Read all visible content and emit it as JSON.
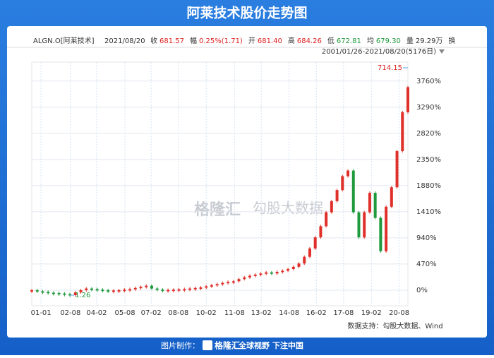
{
  "chart_data": {
    "type": "candlestick",
    "title": "阿莱技术股价走势图",
    "symbol": "ALGN.O[阿莱技术]",
    "date": "2021/08/20",
    "info": [
      {
        "label": "收",
        "value": "681.57"
      },
      {
        "label": "幅",
        "value": "0.25%(1.71)"
      },
      {
        "label": "开",
        "value": "681.40"
      },
      {
        "label": "高",
        "value": "684.26"
      },
      {
        "label": "低",
        "value": "672.81"
      },
      {
        "label": "均",
        "value": "679.30"
      },
      {
        "label": "量",
        "value": "29.29万"
      }
    ],
    "extra": "换",
    "range_label": "2001/01/26-2021/08/20(5176日)",
    "max_label": "714.15",
    "min_label": "1.26",
    "watermarks": [
      "格隆汇",
      "勾股大数据"
    ],
    "source": "数据支持：勾股大数据、Wind",
    "footer": {
      "made_by": "图片制作：",
      "brand": "格隆汇",
      "slogan": "全球视野 下注中国"
    },
    "up_color": "#e0302a",
    "down_color": "#1f9a3c",
    "values": [
      0,
      -20,
      -30,
      -45,
      -50,
      -60,
      -70,
      -90,
      -40,
      0,
      30,
      20,
      10,
      0,
      -10,
      -5,
      0,
      10,
      20,
      40,
      60,
      80,
      30,
      10,
      0,
      5,
      10,
      15,
      20,
      30,
      40,
      50,
      70,
      90,
      110,
      130,
      150,
      160,
      200,
      230,
      260,
      280,
      300,
      320,
      300,
      330,
      350,
      380,
      420,
      480,
      600,
      750,
      950,
      1150,
      1400,
      1600,
      1800,
      2050,
      2150,
      1400,
      950,
      1400,
      1750,
      1300,
      700,
      1500,
      1850,
      2500,
      3200,
      3650
    ],
    "xlim": [
      0,
      69
    ],
    "xticks": [
      {
        "value": 1.7,
        "label": "01-01"
      },
      {
        "value": 7.1,
        "label": "02-08"
      },
      {
        "value": 11.9,
        "label": "04-02"
      },
      {
        "value": 17.1,
        "label": "05-08"
      },
      {
        "value": 21.9,
        "label": "07-02"
      },
      {
        "value": 26.9,
        "label": "08-08"
      },
      {
        "value": 32,
        "label": "10-02"
      },
      {
        "value": 37.2,
        "label": "11-08"
      },
      {
        "value": 42.1,
        "label": "13-02"
      },
      {
        "value": 47.2,
        "label": "14-08"
      },
      {
        "value": 52.2,
        "label": "16-02"
      },
      {
        "value": 57.2,
        "label": "17-08"
      },
      {
        "value": 62.3,
        "label": "19-02"
      },
      {
        "value": 67.4,
        "label": "20-08"
      }
    ],
    "ylim": [
      -280,
      4100
    ],
    "yticks": [
      {
        "value": 0,
        "label": "0%"
      },
      {
        "value": 470,
        "label": "470%"
      },
      {
        "value": 940,
        "label": "940%"
      },
      {
        "value": 1410,
        "label": "1410%"
      },
      {
        "value": 1880,
        "label": "1880%"
      },
      {
        "value": 2350,
        "label": "2350%"
      },
      {
        "value": 2820,
        "label": "2820%"
      },
      {
        "value": 3290,
        "label": "3290%"
      },
      {
        "value": 3760,
        "label": "3760%"
      }
    ],
    "grid": true
  }
}
